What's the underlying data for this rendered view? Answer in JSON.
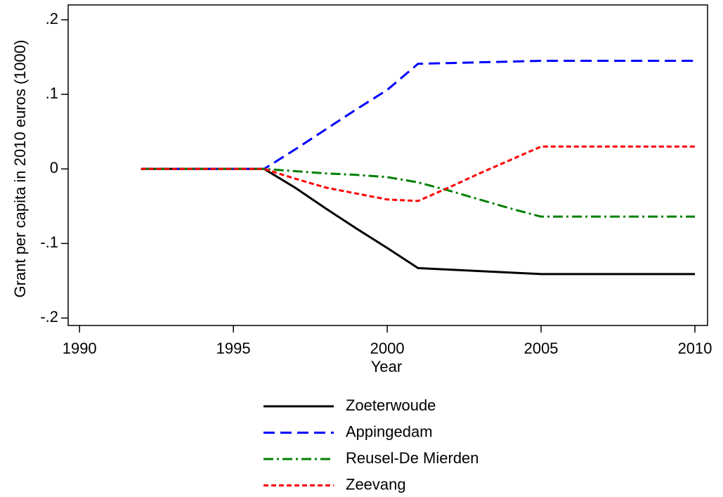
{
  "chart_data": {
    "type": "line",
    "xlabel": "Year",
    "ylabel": "Grant per capita in 2010 euros (1000)",
    "x": [
      1992,
      1996,
      1997,
      1998,
      1999,
      2000,
      2001,
      2002,
      2003,
      2004,
      2005,
      2010
    ],
    "series": [
      {
        "name": "Zoeterwoude",
        "color": "#000000",
        "dash": "solid",
        "values": [
          0,
          0,
          -0.025,
          -0.053,
          -0.08,
          -0.106,
          -0.133,
          -0.135,
          -0.137,
          -0.139,
          -0.141,
          -0.141
        ]
      },
      {
        "name": "Appingedam",
        "color": "#0000ff",
        "dash": "dashed",
        "values": [
          0,
          0,
          0.026,
          0.053,
          0.08,
          0.106,
          0.141,
          0.142,
          0.143,
          0.144,
          0.145,
          0.145
        ]
      },
      {
        "name": "Reusel-De Mierden",
        "color": "#008000",
        "dash": "dashdot",
        "values": [
          0,
          0,
          -0.003,
          -0.006,
          -0.008,
          -0.011,
          -0.018,
          -0.029,
          -0.041,
          -0.053,
          -0.064,
          -0.064
        ]
      },
      {
        "name": "Zeevang",
        "color": "#ff0000",
        "dash": "dotted",
        "values": [
          0,
          0,
          -0.013,
          -0.025,
          -0.033,
          -0.041,
          -0.043,
          -0.025,
          -0.006,
          0.012,
          0.03,
          0.03
        ]
      }
    ],
    "xlim": [
      1989.63,
      2010.41
    ],
    "xticks": [
      1990,
      1995,
      2000,
      2005,
      2010
    ],
    "ylim": [
      -0.21,
      0.22
    ],
    "yticks": [
      {
        "value": -0.2,
        "label": "-.2"
      },
      {
        "value": -0.1,
        "label": "-.1"
      },
      0,
      {
        "value": 0.1,
        "label": ".1"
      },
      {
        "value": 0.2,
        "label": ".2"
      }
    ],
    "legend": "bottom"
  }
}
